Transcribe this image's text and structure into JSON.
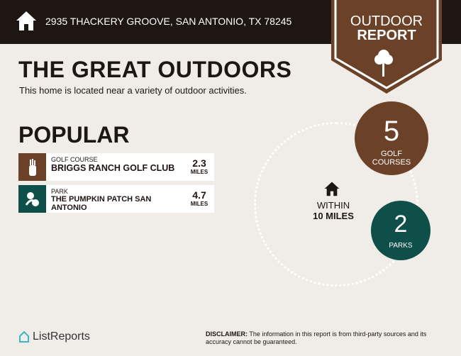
{
  "header": {
    "address": "2935 THACKERY GROOVE, SAN ANTONIO, TX 78245",
    "badge_line1": "OUTDOOR",
    "badge_line2": "REPORT"
  },
  "title": "THE GREAT OUTDOORS",
  "subtitle": "This home is located near a variety of outdoor activities.",
  "popular": {
    "heading": "POPULAR",
    "items": [
      {
        "category": "GOLF COURSE",
        "name": "BRIGGS RANCH GOLF CLUB",
        "distance": "2.3",
        "unit": "MILES",
        "color": "#6b4228",
        "icon": "golf-bag-icon"
      },
      {
        "category": "PARK",
        "name": "THE PUMPKIN PATCH SAN ANTONIO",
        "distance": "4.7",
        "unit": "MILES",
        "color": "#0f4f4a",
        "icon": "park-icon"
      }
    ]
  },
  "radius": {
    "line1": "WITHIN",
    "line2": "10 MILES"
  },
  "stats": [
    {
      "count": "5",
      "label1": "GOLF",
      "label2": "COURSES",
      "color": "#6b4228"
    },
    {
      "count": "2",
      "label1": "PARKS",
      "color": "#0f4f4a"
    }
  ],
  "footer": {
    "logo": "ListReports",
    "disclaimer_label": "DISCLAIMER:",
    "disclaimer": " The information in this report is from third-party sources and its accuracy cannot be guaranteed."
  }
}
